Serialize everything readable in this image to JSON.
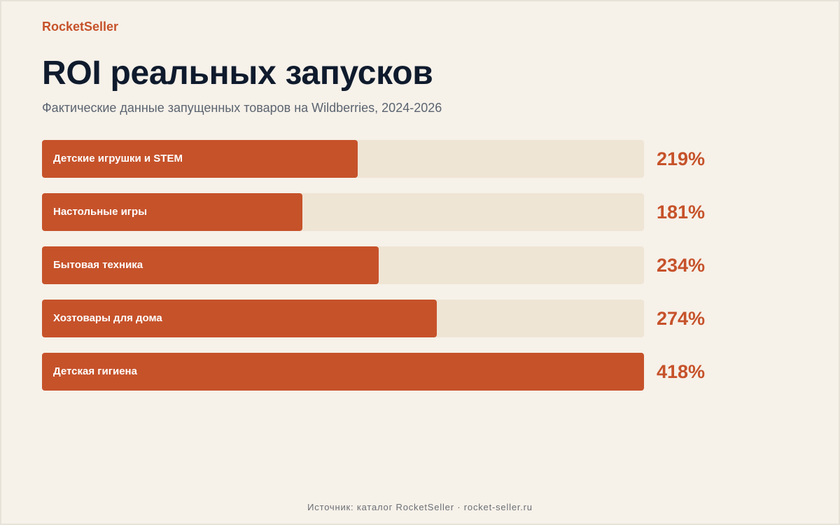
{
  "brand": "RocketSeller",
  "colors": {
    "accent": "#c6522a",
    "track": "#efe5d5",
    "background": "#f6f1e9",
    "title": "#0f1b2d"
  },
  "chart_data": {
    "type": "bar",
    "orientation": "horizontal",
    "title": "ROI реальных запусков",
    "subtitle": "Фактические данные запущенных товаров на Wildberries, 2024-2026",
    "categories": [
      "Детские игрушки и STEM",
      "Настольные игры",
      "Бытовая техника",
      "Хозтовары для дома",
      "Детская гигиена"
    ],
    "values": [
      219,
      181,
      234,
      274,
      418
    ],
    "value_labels": [
      "219%",
      "181%",
      "234%",
      "274%",
      "418%"
    ],
    "unit": "%",
    "xlim": [
      0,
      418
    ],
    "grid": false,
    "legend": "none"
  },
  "footer": "Источник: каталог RocketSeller · rocket-seller.ru"
}
